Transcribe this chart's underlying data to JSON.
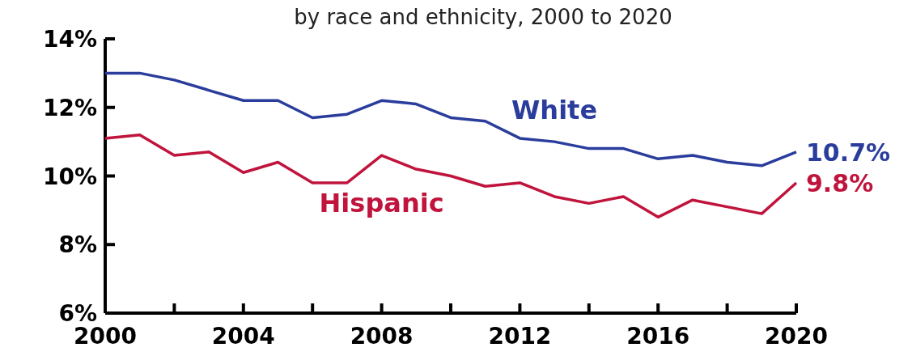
{
  "chart_data": {
    "type": "line",
    "title": "by race and ethnicity, 2000 to 2020",
    "x": [
      2000,
      2001,
      2002,
      2003,
      2004,
      2005,
      2006,
      2007,
      2008,
      2009,
      2010,
      2011,
      2012,
      2013,
      2014,
      2015,
      2016,
      2017,
      2018,
      2019,
      2020
    ],
    "series": [
      {
        "name": "White",
        "color": "#2a3d9c",
        "values": [
          13.0,
          13.0,
          12.8,
          12.5,
          12.2,
          12.2,
          11.7,
          11.8,
          12.2,
          12.1,
          11.7,
          11.6,
          11.1,
          11.0,
          10.8,
          10.8,
          10.5,
          10.6,
          10.4,
          10.3,
          10.7
        ],
        "value_labels": [
          null,
          null,
          null,
          null,
          null,
          null,
          null,
          null,
          null,
          null,
          null,
          null,
          null,
          null,
          null,
          null,
          null,
          null,
          null,
          null,
          "10.7%"
        ]
      },
      {
        "name": "Hispanic",
        "color": "#c0143c",
        "values": [
          11.1,
          11.2,
          10.6,
          10.7,
          10.1,
          10.4,
          9.8,
          9.8,
          10.6,
          10.2,
          10.0,
          9.7,
          9.8,
          9.4,
          9.2,
          9.4,
          8.8,
          9.3,
          9.1,
          8.9,
          9.8
        ],
        "value_labels": [
          null,
          null,
          null,
          null,
          null,
          null,
          null,
          null,
          null,
          null,
          null,
          null,
          null,
          null,
          null,
          null,
          null,
          null,
          null,
          null,
          "9.8%"
        ]
      }
    ],
    "xlim": [
      2000,
      2020
    ],
    "xticks": [
      2000,
      {
        "value": 2002,
        "label": null
      },
      2004,
      {
        "value": 2006,
        "label": null
      },
      2008,
      {
        "value": 2010,
        "label": null
      },
      2012,
      {
        "value": 2014,
        "label": null
      },
      2016,
      {
        "value": 2018,
        "label": null
      },
      2020
    ],
    "ylim": [
      6,
      14
    ],
    "yticks": [
      {
        "value": 6,
        "label": "6%"
      },
      {
        "value": 8,
        "label": "8%"
      },
      {
        "value": 10,
        "label": "10%"
      },
      {
        "value": 12,
        "label": "12%"
      },
      {
        "value": 14,
        "label": "14%"
      }
    ],
    "grid": false,
    "marker": "none",
    "line_style": "solid"
  }
}
